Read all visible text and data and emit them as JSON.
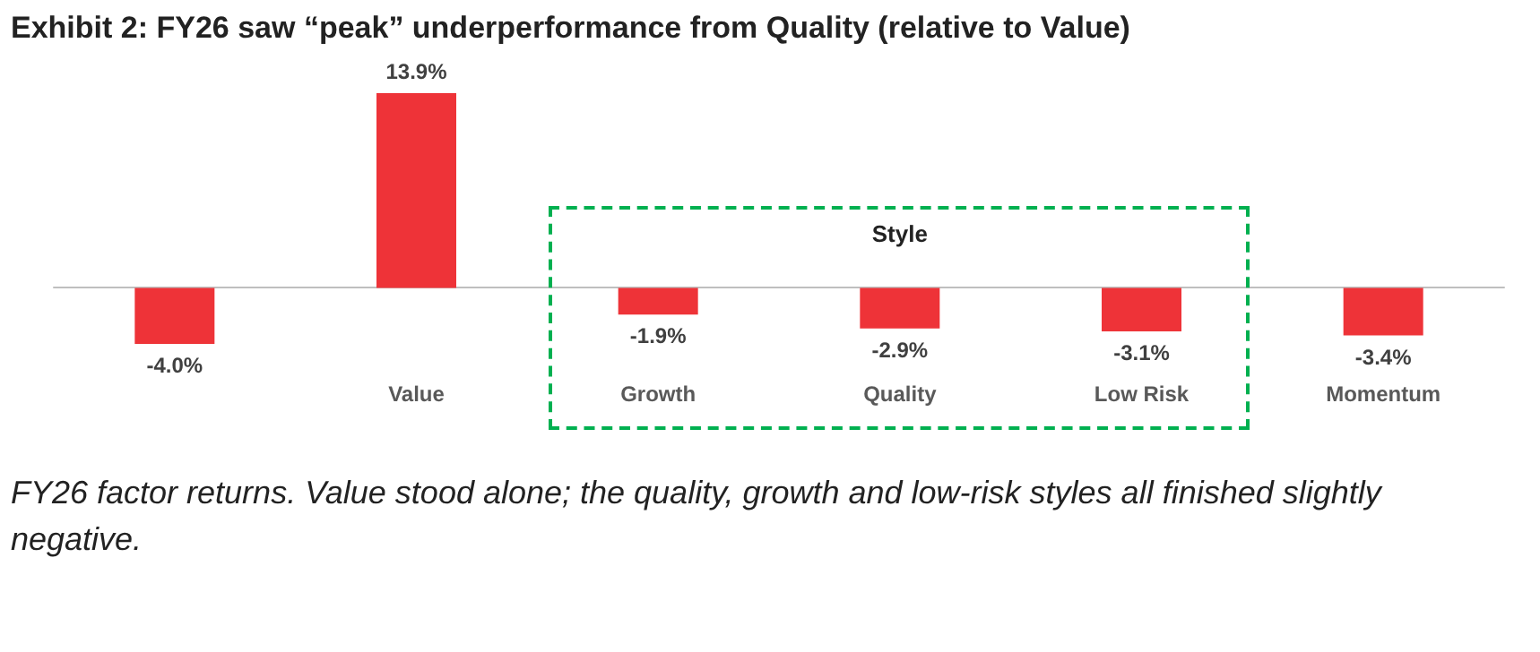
{
  "chart_data": {
    "type": "bar",
    "title": "Exhibit 2: FY26 saw “peak” underperformance from Quality (relative to Value)",
    "categories": [
      null,
      "Value",
      "Growth",
      "Quality",
      "Low Risk",
      "Momentum"
    ],
    "values": [
      -4.0,
      13.9,
      -1.9,
      -2.9,
      -3.1,
      -3.4
    ],
    "value_labels": [
      "-4.0%",
      "13.9%",
      "-1.9%",
      "-2.9%",
      "-3.1%",
      "-3.4%"
    ],
    "color": "#ee3338",
    "annotations": [
      "Style",
      "FY26 factor returns. Value stood alone; the quality, growth and low-risk styles all finished slightly negative."
    ]
  }
}
